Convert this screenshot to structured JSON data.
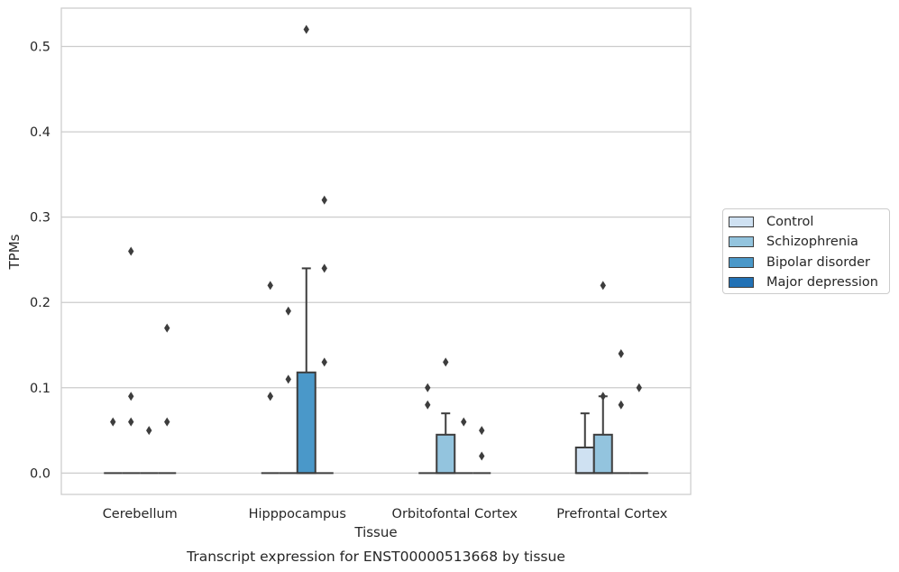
{
  "chart_data": {
    "type": "box",
    "caption": "Transcript expression for ENST00000513668 by tissue",
    "xlabel": "Tissue",
    "ylabel": "TPMs",
    "ylim": [
      -0.025,
      0.545
    ],
    "yticks": [
      "0.0",
      "0.1",
      "0.2",
      "0.3",
      "0.4",
      "0.5"
    ],
    "ytick_values": [
      0.0,
      0.1,
      0.2,
      0.3,
      0.4,
      0.5
    ],
    "grid": "horizontal",
    "legend_position": "right",
    "categories": [
      "Cerebellum",
      "Hipppocampus",
      "Orbitofontal Cortex",
      "Prefrontal Cortex"
    ],
    "series": [
      {
        "name": "Control",
        "color": "#cfe1f2",
        "boxes": [
          {
            "q1": 0,
            "median": 0,
            "q3": 0,
            "whisker_low": 0,
            "whisker_high": 0,
            "outliers": [
              0.06
            ]
          },
          {
            "q1": 0,
            "median": 0,
            "q3": 0,
            "whisker_low": 0,
            "whisker_high": 0,
            "outliers": [
              0.09,
              0.09,
              0.22
            ]
          },
          {
            "q1": 0,
            "median": 0,
            "q3": 0,
            "whisker_low": 0,
            "whisker_high": 0,
            "outliers": [
              0.08,
              0.1
            ]
          },
          {
            "q1": 0,
            "median": 0,
            "q3": 0.03,
            "whisker_low": 0,
            "whisker_high": 0.07,
            "outliers": []
          }
        ]
      },
      {
        "name": "Schizophrenia",
        "color": "#93c4de",
        "boxes": [
          {
            "q1": 0,
            "median": 0,
            "q3": 0,
            "whisker_low": 0,
            "whisker_high": 0,
            "outliers": [
              0.06,
              0.09,
              0.26
            ]
          },
          {
            "q1": 0,
            "median": 0,
            "q3": 0,
            "whisker_low": 0,
            "whisker_high": 0,
            "outliers": [
              0.11,
              0.19
            ]
          },
          {
            "q1": 0,
            "median": 0,
            "q3": 0.045,
            "whisker_low": 0,
            "whisker_high": 0.07,
            "outliers": [
              0.13
            ]
          },
          {
            "q1": 0,
            "median": 0,
            "q3": 0.045,
            "whisker_low": 0,
            "whisker_high": 0.09,
            "outliers": [
              0.09,
              0.22
            ]
          }
        ]
      },
      {
        "name": "Bipolar disorder",
        "color": "#4a98c9",
        "boxes": [
          {
            "q1": 0,
            "median": 0,
            "q3": 0,
            "whisker_low": 0,
            "whisker_high": 0,
            "outliers": [
              0.05
            ]
          },
          {
            "q1": 0,
            "median": 0,
            "q3": 0.118,
            "whisker_low": 0,
            "whisker_high": 0.24,
            "outliers": [
              0.52
            ]
          },
          {
            "q1": 0,
            "median": 0,
            "q3": 0,
            "whisker_low": 0,
            "whisker_high": 0,
            "outliers": [
              0.06
            ]
          },
          {
            "q1": 0,
            "median": 0,
            "q3": 0,
            "whisker_low": 0,
            "whisker_high": 0,
            "outliers": [
              0.08,
              0.14
            ]
          }
        ]
      },
      {
        "name": "Major depression",
        "color": "#2171b5",
        "boxes": [
          {
            "q1": 0,
            "median": 0,
            "q3": 0,
            "whisker_low": 0,
            "whisker_high": 0,
            "outliers": [
              0.06,
              0.17
            ]
          },
          {
            "q1": 0,
            "median": 0,
            "q3": 0,
            "whisker_low": 0,
            "whisker_high": 0,
            "outliers": [
              0.13,
              0.24,
              0.32
            ]
          },
          {
            "q1": 0,
            "median": 0,
            "q3": 0,
            "whisker_low": 0,
            "whisker_high": 0,
            "outliers": [
              0.02,
              0.05
            ]
          },
          {
            "q1": 0,
            "median": 0,
            "q3": 0,
            "whisker_low": 0,
            "whisker_high": 0,
            "outliers": [
              0.1
            ]
          }
        ]
      }
    ]
  }
}
